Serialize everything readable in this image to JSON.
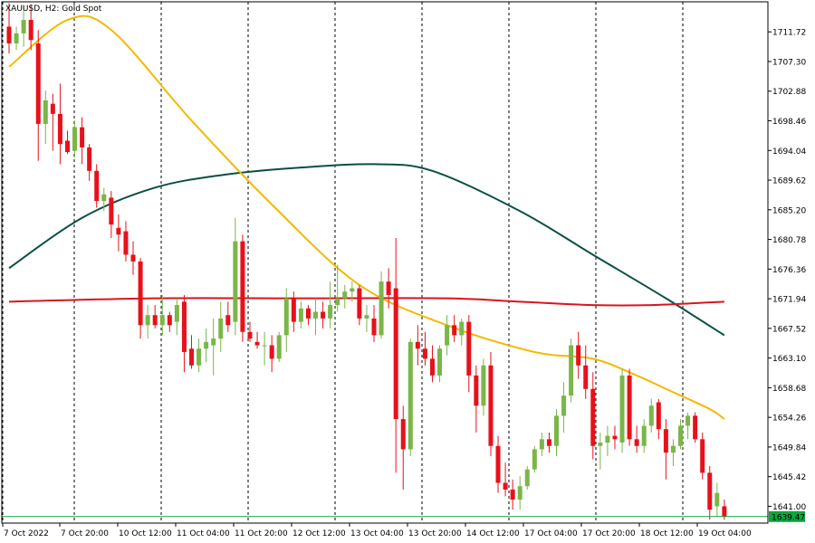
{
  "chart_data": {
    "type": "candlestick",
    "title": "XAUUSD, H2:  Gold Spot",
    "x_tick_labels": [
      "7 Oct 2022",
      "7 Oct 20:00",
      "10 Oct 12:00",
      "11 Oct 04:00",
      "11 Oct 20:00",
      "12 Oct 12:00",
      "13 Oct 04:00",
      "13 Oct 20:00",
      "14 Oct 12:00",
      "17 Oct 04:00",
      "17 Oct 20:00",
      "18 Oct 12:00",
      "19 Oct 04:00"
    ],
    "y_tick_labels": [
      "1711.72",
      "1707.30",
      "1702.88",
      "1698.46",
      "1694.04",
      "1689.62",
      "1685.20",
      "1680.78",
      "1676.36",
      "1671.94",
      "1667.52",
      "1663.10",
      "1658.68",
      "1654.26",
      "1649.84",
      "1645.42",
      "1641.00"
    ],
    "ylim": [
      1638.5,
      1716.2
    ],
    "current_price": "1639.47",
    "grid": "vertical dashed lines at each x tick",
    "colors": {
      "bull": "#7ab648",
      "bear": "#e8101a",
      "ma_fast": "#f5b800",
      "ma_mid": "#0b4f45",
      "ma_slow": "#d9151f",
      "price_line": "#0aa83c",
      "grid": "#000000"
    },
    "candles": [
      {
        "o": 1712.5,
        "h": 1716.0,
        "l": 1708.5,
        "c": 1710.0
      },
      {
        "o": 1710.0,
        "h": 1712.5,
        "l": 1709.0,
        "c": 1711.5
      },
      {
        "o": 1711.5,
        "h": 1715.5,
        "l": 1709.5,
        "c": 1713.5
      },
      {
        "o": 1713.5,
        "h": 1715.8,
        "l": 1709.0,
        "c": 1710.5
      },
      {
        "o": 1710.0,
        "h": 1712.0,
        "l": 1692.5,
        "c": 1698.0
      },
      {
        "o": 1698.0,
        "h": 1703.0,
        "l": 1695.0,
        "c": 1701.5
      },
      {
        "o": 1701.0,
        "h": 1702.5,
        "l": 1694.0,
        "c": 1699.5
      },
      {
        "o": 1699.5,
        "h": 1704.0,
        "l": 1692.0,
        "c": 1695.0
      },
      {
        "o": 1695.5,
        "h": 1697.0,
        "l": 1693.5,
        "c": 1693.8
      },
      {
        "o": 1694.0,
        "h": 1698.5,
        "l": 1693.0,
        "c": 1697.5
      },
      {
        "o": 1697.5,
        "h": 1699.0,
        "l": 1692.0,
        "c": 1694.5
      },
      {
        "o": 1694.5,
        "h": 1695.0,
        "l": 1689.5,
        "c": 1691.0
      },
      {
        "o": 1691.0,
        "h": 1692.0,
        "l": 1685.5,
        "c": 1686.5
      },
      {
        "o": 1686.5,
        "h": 1688.5,
        "l": 1685.0,
        "c": 1687.5
      },
      {
        "o": 1687.0,
        "h": 1688.0,
        "l": 1681.0,
        "c": 1683.0
      },
      {
        "o": 1682.5,
        "h": 1684.5,
        "l": 1679.0,
        "c": 1681.5
      },
      {
        "o": 1682.0,
        "h": 1683.5,
        "l": 1677.5,
        "c": 1678.5
      },
      {
        "o": 1678.5,
        "h": 1680.5,
        "l": 1675.5,
        "c": 1677.5
      },
      {
        "o": 1677.5,
        "h": 1678.0,
        "l": 1666.0,
        "c": 1668.0
      },
      {
        "o": 1668.0,
        "h": 1671.0,
        "l": 1666.0,
        "c": 1669.5
      },
      {
        "o": 1669.5,
        "h": 1671.0,
        "l": 1667.5,
        "c": 1668.0
      },
      {
        "o": 1668.0,
        "h": 1672.5,
        "l": 1666.5,
        "c": 1669.5
      },
      {
        "o": 1669.5,
        "h": 1670.0,
        "l": 1667.0,
        "c": 1668.0
      },
      {
        "o": 1668.5,
        "h": 1672.0,
        "l": 1666.5,
        "c": 1671.0
      },
      {
        "o": 1671.5,
        "h": 1672.5,
        "l": 1661.0,
        "c": 1664.0
      },
      {
        "o": 1664.5,
        "h": 1666.5,
        "l": 1661.5,
        "c": 1662.0
      },
      {
        "o": 1662.0,
        "h": 1666.0,
        "l": 1661.0,
        "c": 1664.5
      },
      {
        "o": 1664.5,
        "h": 1667.5,
        "l": 1662.5,
        "c": 1665.5
      },
      {
        "o": 1665.0,
        "h": 1669.0,
        "l": 1660.5,
        "c": 1666.0
      },
      {
        "o": 1666.0,
        "h": 1671.5,
        "l": 1664.0,
        "c": 1669.0
      },
      {
        "o": 1669.5,
        "h": 1671.5,
        "l": 1667.0,
        "c": 1668.0
      },
      {
        "o": 1668.5,
        "h": 1684.0,
        "l": 1666.5,
        "c": 1680.5
      },
      {
        "o": 1680.5,
        "h": 1681.5,
        "l": 1665.5,
        "c": 1667.0
      },
      {
        "o": 1667.0,
        "h": 1668.5,
        "l": 1665.5,
        "c": 1666.0
      },
      {
        "o": 1665.5,
        "h": 1667.0,
        "l": 1664.5,
        "c": 1665.0
      },
      {
        "o": 1665.0,
        "h": 1667.0,
        "l": 1662.0,
        "c": 1665.0
      },
      {
        "o": 1665.0,
        "h": 1666.5,
        "l": 1661.0,
        "c": 1663.0
      },
      {
        "o": 1663.0,
        "h": 1667.0,
        "l": 1662.5,
        "c": 1666.5
      },
      {
        "o": 1666.5,
        "h": 1673.5,
        "l": 1664.0,
        "c": 1672.0
      },
      {
        "o": 1672.0,
        "h": 1673.0,
        "l": 1667.0,
        "c": 1668.5
      },
      {
        "o": 1668.5,
        "h": 1671.5,
        "l": 1667.5,
        "c": 1670.5
      },
      {
        "o": 1670.5,
        "h": 1671.0,
        "l": 1668.0,
        "c": 1669.0
      },
      {
        "o": 1669.0,
        "h": 1672.0,
        "l": 1666.5,
        "c": 1670.0
      },
      {
        "o": 1670.0,
        "h": 1671.5,
        "l": 1667.5,
        "c": 1669.0
      },
      {
        "o": 1669.0,
        "h": 1674.5,
        "l": 1667.5,
        "c": 1671.0
      },
      {
        "o": 1671.0,
        "h": 1677.0,
        "l": 1670.0,
        "c": 1672.0
      },
      {
        "o": 1672.0,
        "h": 1674.0,
        "l": 1670.5,
        "c": 1673.0
      },
      {
        "o": 1673.0,
        "h": 1674.5,
        "l": 1671.5,
        "c": 1673.5
      },
      {
        "o": 1673.5,
        "h": 1674.0,
        "l": 1668.0,
        "c": 1669.0
      },
      {
        "o": 1669.0,
        "h": 1671.0,
        "l": 1667.0,
        "c": 1669.5
      },
      {
        "o": 1669.0,
        "h": 1671.0,
        "l": 1665.5,
        "c": 1666.5
      },
      {
        "o": 1666.5,
        "h": 1676.0,
        "l": 1666.0,
        "c": 1674.5
      },
      {
        "o": 1674.5,
        "h": 1676.5,
        "l": 1670.5,
        "c": 1672.5
      },
      {
        "o": 1673.5,
        "h": 1681.0,
        "l": 1646.0,
        "c": 1654.0
      },
      {
        "o": 1654.0,
        "h": 1656.0,
        "l": 1643.5,
        "c": 1649.5
      },
      {
        "o": 1649.5,
        "h": 1666.0,
        "l": 1648.5,
        "c": 1665.5
      },
      {
        "o": 1665.5,
        "h": 1668.0,
        "l": 1662.0,
        "c": 1664.5
      },
      {
        "o": 1664.5,
        "h": 1667.0,
        "l": 1662.0,
        "c": 1663.0
      },
      {
        "o": 1663.0,
        "h": 1665.0,
        "l": 1659.5,
        "c": 1660.5
      },
      {
        "o": 1660.5,
        "h": 1665.0,
        "l": 1659.5,
        "c": 1664.5
      },
      {
        "o": 1665.0,
        "h": 1669.5,
        "l": 1663.5,
        "c": 1668.0
      },
      {
        "o": 1668.0,
        "h": 1669.5,
        "l": 1665.5,
        "c": 1666.5
      },
      {
        "o": 1666.5,
        "h": 1669.0,
        "l": 1665.0,
        "c": 1668.5
      },
      {
        "o": 1668.5,
        "h": 1669.5,
        "l": 1658.0,
        "c": 1660.5
      },
      {
        "o": 1660.5,
        "h": 1662.0,
        "l": 1652.0,
        "c": 1656.0
      },
      {
        "o": 1656.0,
        "h": 1663.0,
        "l": 1654.5,
        "c": 1662.0
      },
      {
        "o": 1662.0,
        "h": 1664.0,
        "l": 1648.5,
        "c": 1650.0
      },
      {
        "o": 1650.0,
        "h": 1651.5,
        "l": 1643.0,
        "c": 1644.5
      },
      {
        "o": 1644.5,
        "h": 1647.5,
        "l": 1642.5,
        "c": 1643.5
      },
      {
        "o": 1643.5,
        "h": 1645.0,
        "l": 1640.5,
        "c": 1642.0
      },
      {
        "o": 1642.0,
        "h": 1645.5,
        "l": 1640.5,
        "c": 1644.0
      },
      {
        "o": 1644.0,
        "h": 1647.0,
        "l": 1643.5,
        "c": 1646.5
      },
      {
        "o": 1646.5,
        "h": 1650.0,
        "l": 1646.0,
        "c": 1649.5
      },
      {
        "o": 1649.5,
        "h": 1652.0,
        "l": 1648.5,
        "c": 1651.0
      },
      {
        "o": 1651.0,
        "h": 1652.0,
        "l": 1649.0,
        "c": 1650.0
      },
      {
        "o": 1650.0,
        "h": 1655.5,
        "l": 1648.5,
        "c": 1654.5
      },
      {
        "o": 1654.5,
        "h": 1659.5,
        "l": 1652.0,
        "c": 1657.5
      },
      {
        "o": 1657.5,
        "h": 1666.0,
        "l": 1656.5,
        "c": 1665.0
      },
      {
        "o": 1665.0,
        "h": 1667.0,
        "l": 1660.0,
        "c": 1662.0
      },
      {
        "o": 1662.0,
        "h": 1665.0,
        "l": 1657.0,
        "c": 1658.5
      },
      {
        "o": 1658.5,
        "h": 1661.0,
        "l": 1648.0,
        "c": 1650.0
      },
      {
        "o": 1650.0,
        "h": 1652.0,
        "l": 1646.5,
        "c": 1650.5
      },
      {
        "o": 1650.5,
        "h": 1653.0,
        "l": 1648.5,
        "c": 1651.5
      },
      {
        "o": 1651.5,
        "h": 1653.0,
        "l": 1649.5,
        "c": 1651.0
      },
      {
        "o": 1650.5,
        "h": 1661.5,
        "l": 1649.0,
        "c": 1660.5
      },
      {
        "o": 1660.5,
        "h": 1661.5,
        "l": 1650.0,
        "c": 1651.0
      },
      {
        "o": 1651.0,
        "h": 1653.0,
        "l": 1649.0,
        "c": 1650.0
      },
      {
        "o": 1650.0,
        "h": 1654.0,
        "l": 1649.0,
        "c": 1653.0
      },
      {
        "o": 1653.0,
        "h": 1657.0,
        "l": 1652.0,
        "c": 1656.0
      },
      {
        "o": 1656.5,
        "h": 1657.0,
        "l": 1651.0,
        "c": 1652.5
      },
      {
        "o": 1652.5,
        "h": 1654.0,
        "l": 1645.0,
        "c": 1649.0
      },
      {
        "o": 1649.0,
        "h": 1651.0,
        "l": 1647.0,
        "c": 1650.0
      },
      {
        "o": 1650.0,
        "h": 1654.0,
        "l": 1649.5,
        "c": 1653.0
      },
      {
        "o": 1653.0,
        "h": 1655.0,
        "l": 1651.0,
        "c": 1654.5
      },
      {
        "o": 1654.5,
        "h": 1655.0,
        "l": 1650.5,
        "c": 1651.0
      },
      {
        "o": 1651.0,
        "h": 1652.0,
        "l": 1645.0,
        "c": 1646.0
      },
      {
        "o": 1646.0,
        "h": 1647.0,
        "l": 1639.0,
        "c": 1640.5
      },
      {
        "o": 1641.0,
        "h": 1644.5,
        "l": 1639.5,
        "c": 1643.0
      },
      {
        "o": 1641.0,
        "h": 1642.0,
        "l": 1639.0,
        "c": 1639.5
      }
    ],
    "ma_fast": {
      "idx": [
        0,
        8,
        14,
        25,
        36,
        48,
        60,
        72,
        80,
        86,
        90,
        96,
        98
      ],
      "val": [
        1706.5,
        1713.5,
        1712.0,
        1698.5,
        1686.0,
        1674.0,
        1668.0,
        1664.0,
        1663.0,
        1660.5,
        1658.5,
        1655.5,
        1654.0
      ]
    },
    "ma_mid": {
      "idx": [
        0,
        10,
        20,
        30,
        40,
        50,
        58,
        70,
        80,
        90,
        98
      ],
      "val": [
        1676.5,
        1684.0,
        1688.5,
        1690.5,
        1691.5,
        1692.0,
        1691.0,
        1685.0,
        1678.5,
        1672.0,
        1666.5
      ]
    },
    "ma_slow": {
      "idx": [
        0,
        20,
        40,
        60,
        70,
        80,
        88,
        98
      ],
      "val": [
        1671.5,
        1672.0,
        1672.0,
        1672.0,
        1671.5,
        1671.0,
        1671.0,
        1671.5
      ]
    }
  }
}
